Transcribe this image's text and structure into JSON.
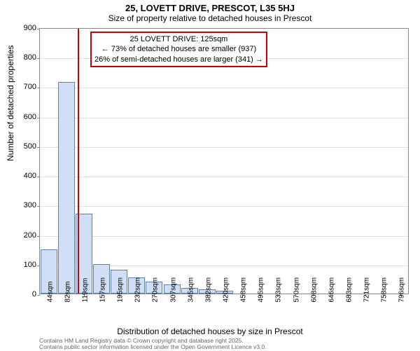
{
  "title": "25, LOVETT DRIVE, PRESCOT, L35 5HJ",
  "subtitle": "Size of property relative to detached houses in Prescot",
  "chart": {
    "type": "bar",
    "x_categories": [
      "44sqm",
      "82sqm",
      "119sqm",
      "157sqm",
      "195sqm",
      "232sqm",
      "270sqm",
      "307sqm",
      "345sqm",
      "382sqm",
      "420sqm",
      "458sqm",
      "495sqm",
      "533sqm",
      "570sqm",
      "608sqm",
      "646sqm",
      "683sqm",
      "721sqm",
      "758sqm",
      "796sqm"
    ],
    "values": [
      150,
      715,
      270,
      100,
      80,
      55,
      40,
      30,
      20,
      15,
      10,
      0,
      0,
      0,
      0,
      0,
      0,
      0,
      0,
      0,
      0
    ],
    "ylim": [
      0,
      900
    ],
    "yticks": [
      0,
      100,
      200,
      300,
      400,
      500,
      600,
      700,
      800,
      900
    ],
    "bar_fill": "#d0dff5",
    "bar_border": "#6080b0",
    "grid_color": "#e0e0e0",
    "background_color": "#ffffff",
    "ref_line_color": "#cc0000",
    "ref_line_x_index": 2.15,
    "annotation_box": {
      "line1": "25 LOVETT DRIVE: 125sqm",
      "line2": "← 73% of detached houses are smaller (937)",
      "line3": "26% of semi-detached houses are larger (341) →",
      "border_color": "#cc0000"
    }
  },
  "y_axis_label": "Number of detached properties",
  "x_axis_label": "Distribution of detached houses by size in Prescot",
  "footer_line1": "Contains HM Land Registry data © Crown copyright and database right 2025.",
  "footer_line2": "Contains public sector information licensed under the Open Government Licence v3.0."
}
